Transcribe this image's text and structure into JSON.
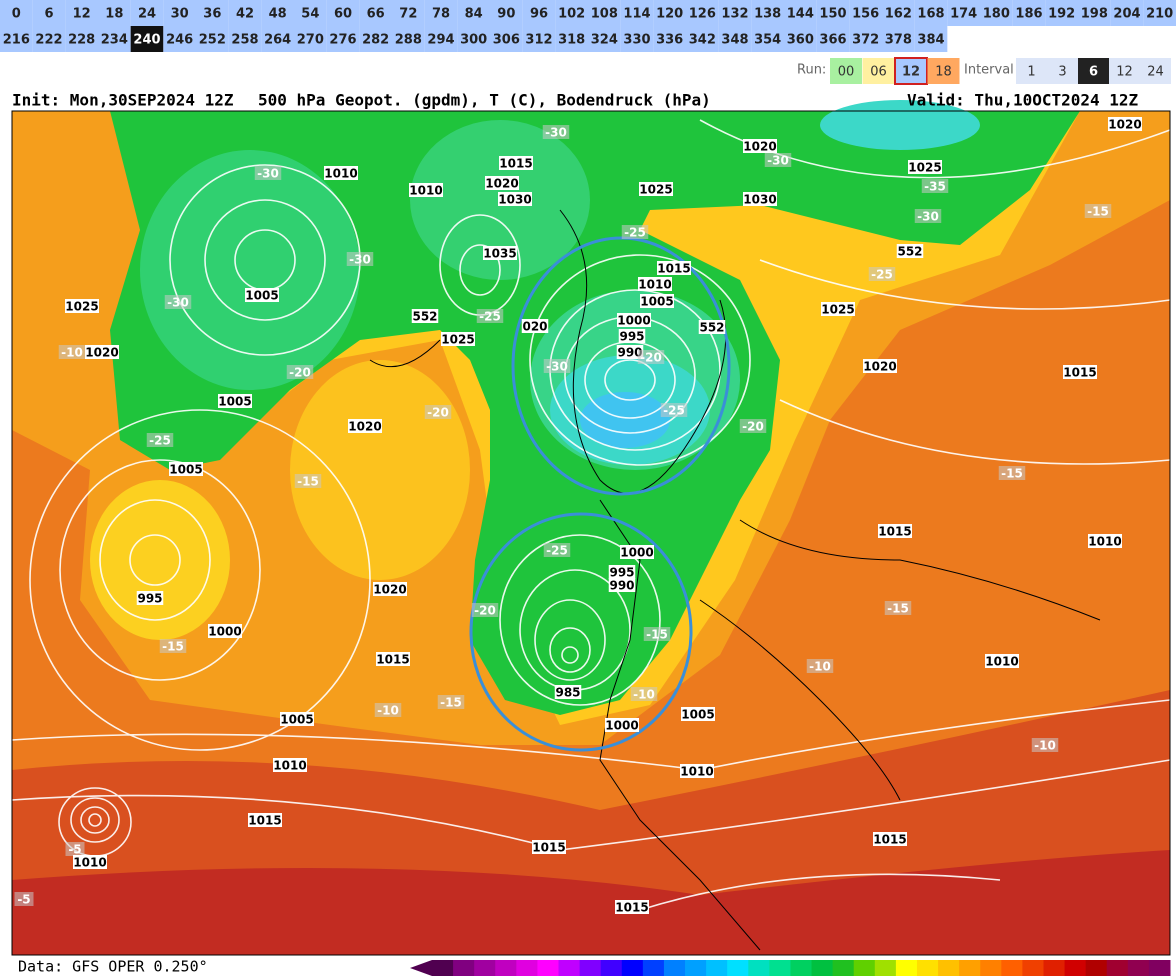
{
  "hours": {
    "row1": [
      0,
      6,
      12,
      18,
      24,
      30,
      36,
      42,
      48,
      54,
      60,
      66,
      72,
      78,
      84,
      90,
      96,
      102,
      108,
      114,
      120,
      126,
      132,
      138,
      144,
      150,
      156,
      162,
      168,
      174,
      180,
      186,
      192,
      198,
      204,
      210
    ],
    "row2": [
      216,
      222,
      228,
      234,
      240,
      246,
      252,
      258,
      264,
      270,
      276,
      282,
      288,
      294,
      300,
      306,
      312,
      318,
      324,
      330,
      336,
      342,
      348,
      354,
      360,
      366,
      372,
      378,
      384
    ],
    "selected": 240
  },
  "run": {
    "label": "Run:",
    "options": [
      "00",
      "06",
      "12",
      "18"
    ],
    "selected": "12"
  },
  "interval": {
    "label": "Interval",
    "options": [
      "1",
      "3",
      "6",
      "12",
      "24"
    ],
    "selected": "6"
  },
  "header": {
    "init": "Init: Mon,30SEP2024 12Z",
    "title": "500 hPa Geopot. (gpdm), T (C), Bodendruck (hPa)",
    "valid": "Valid: Thu,10OCT2024 12Z"
  },
  "map": {
    "labels": [
      "1020",
      "-30",
      "1020",
      "-30",
      "1015",
      "1010",
      "-30",
      "1025",
      "-35",
      "1010",
      "1020",
      "1030",
      "1025",
      "1030",
      "-30",
      "-15",
      "-25",
      "552",
      "1035",
      "-30",
      "1015",
      "-25",
      "1010",
      "1005",
      "-30",
      "1025",
      "1005",
      "1025",
      "552",
      "-25",
      "020",
      "1000",
      "552",
      "995",
      "1025",
      "-10",
      "1020",
      "990",
      "-20",
      "-30",
      "1020",
      "-20",
      "1015",
      "1005",
      "-20",
      "-25",
      "1020",
      "-20",
      "-25",
      "1005",
      "-15",
      "-15",
      "1015",
      "1010",
      "-25",
      "1000",
      "995",
      "990",
      "995",
      "1020",
      "-20",
      "-15",
      "1000",
      "-15",
      "-15",
      "1015",
      "-10",
      "1010",
      "-10",
      "985",
      "1005",
      "-15",
      "-10",
      "1005",
      "1000",
      "-10",
      "1010",
      "1010",
      "1015",
      "1015",
      "1015",
      "-5",
      "1010",
      "-5",
      "1015"
    ]
  },
  "footer": {
    "data": "Data: GFS OPER 0.250°"
  }
}
